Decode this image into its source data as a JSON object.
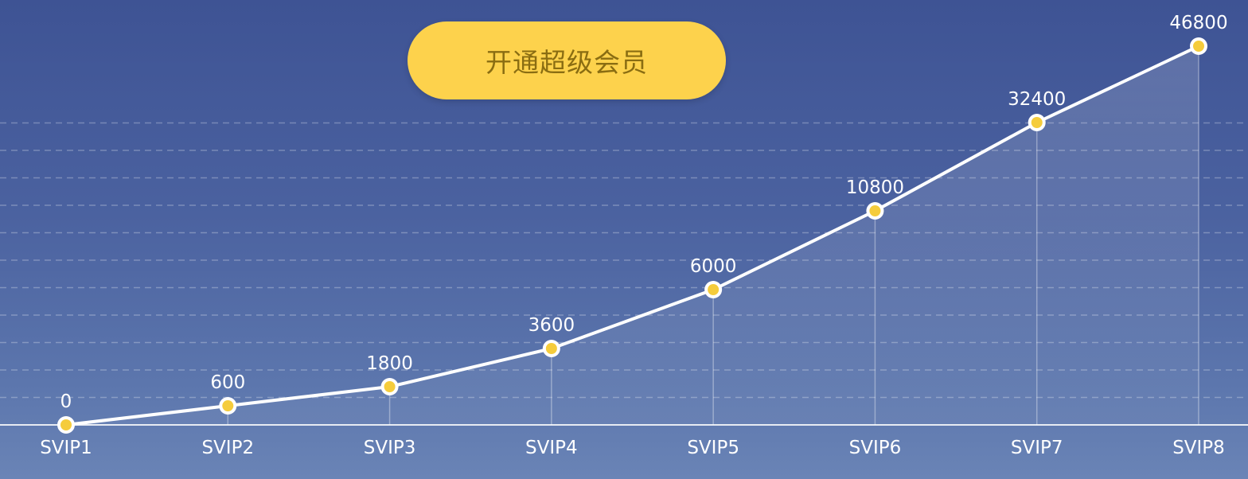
{
  "cta": {
    "label": "开通超级会员"
  },
  "colors": {
    "button": "#fdd24c",
    "button_text": "#8a6d12",
    "line": "#ffffff",
    "point": "#f5cc3c"
  },
  "chart_data": {
    "type": "line",
    "categories": [
      "SVIP1",
      "SVIP2",
      "SVIP3",
      "SVIP4",
      "SVIP5",
      "SVIP6",
      "SVIP7",
      "SVIP8"
    ],
    "values": [
      0,
      600,
      1800,
      3600,
      6000,
      10800,
      32400,
      46800
    ],
    "data_labels": [
      "0",
      "600",
      "1800",
      "3600",
      "6000",
      "10800",
      "32400",
      "46800"
    ],
    "scale": "non-linear",
    "grid": true,
    "legend": "none"
  }
}
